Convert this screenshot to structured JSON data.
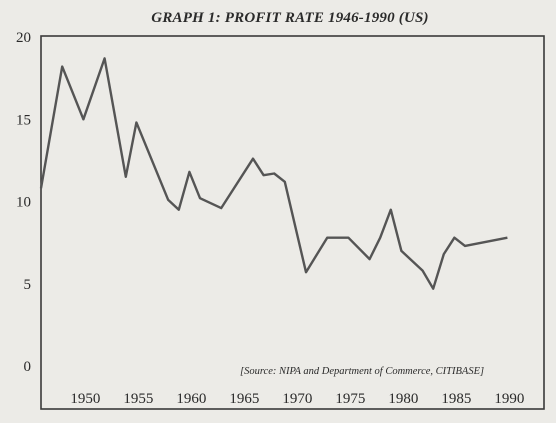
{
  "chart_data": {
    "type": "line",
    "title": "GRAPH 1: PROFIT RATE 1946-1990 (US)",
    "source": "[Source: NIPA and Department of Commerce, CITIBASE]",
    "xlabel": "",
    "ylabel": "",
    "xlim": [
      1946,
      1991
    ],
    "ylim": [
      0,
      20
    ],
    "x_ticks": [
      1950,
      1955,
      1960,
      1965,
      1970,
      1975,
      1980,
      1985,
      1990
    ],
    "y_ticks": [
      0,
      5,
      10,
      15,
      20
    ],
    "grid": false,
    "series": [
      {
        "x": [
          1946,
          1948,
          1950,
          1952,
          1954,
          1955,
          1958,
          1959,
          1960,
          1961,
          1963,
          1966,
          1967,
          1968,
          1969,
          1971,
          1973,
          1974,
          1975,
          1977,
          1978,
          1979,
          1980,
          1982,
          1983,
          1984,
          1985,
          1986,
          1990
        ],
        "values": [
          10.8,
          18.2,
          15.0,
          18.7,
          11.5,
          14.8,
          10.1,
          9.5,
          11.8,
          10.2,
          9.6,
          12.6,
          11.6,
          11.7,
          11.2,
          5.7,
          7.8,
          7.8,
          7.8,
          6.5,
          7.8,
          9.5,
          7.0,
          5.8,
          4.7,
          6.8,
          7.8,
          7.3,
          7.8
        ]
      }
    ]
  },
  "colors": {
    "background": "#ecebe7",
    "line": "#555555",
    "text": "#2a2a2a"
  }
}
